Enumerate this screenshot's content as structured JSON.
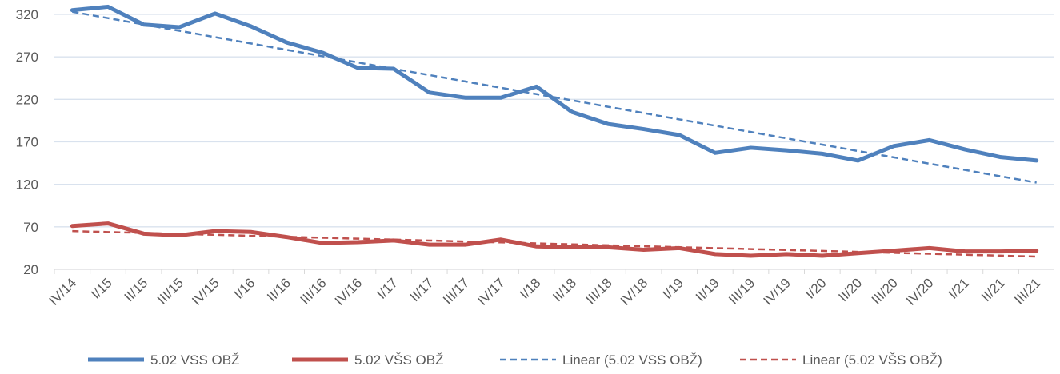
{
  "chart_data": {
    "type": "line",
    "categories": [
      "IV/14",
      "I/15",
      "II/15",
      "III/15",
      "IV/15",
      "I/16",
      "II/16",
      "III/16",
      "IV/16",
      "I/17",
      "II/17",
      "III/17",
      "IV/17",
      "I/18",
      "II/18",
      "III/18",
      "IV/18",
      "I/19",
      "II/19",
      "III/19",
      "IV/19",
      "I/20",
      "II/20",
      "III/20",
      "IV/20",
      "I/21",
      "II/21",
      "III/21"
    ],
    "series": [
      {
        "name": "5.02 VSS OBŽ",
        "color": "#4f81bd",
        "dashed": false,
        "values": [
          325,
          329,
          308,
          305,
          321,
          306,
          287,
          275,
          257,
          256,
          228,
          222,
          222,
          235,
          205,
          191,
          185,
          178,
          157,
          163,
          160,
          156,
          148,
          165,
          172,
          161,
          152,
          148
        ]
      },
      {
        "name": "5.02 VŠS OBŽ",
        "color": "#c0504d",
        "dashed": false,
        "values": [
          71,
          74,
          62,
          60,
          65,
          64,
          58,
          51,
          52,
          54,
          49,
          49,
          55,
          47,
          46,
          46,
          43,
          45,
          38,
          36,
          38,
          36,
          39,
          42,
          45,
          41,
          41,
          42
        ]
      },
      {
        "name": "Linear (5.02 VSS OBŽ)",
        "color": "#4f81bd",
        "dashed": true,
        "values": [
          323,
          315.6,
          308.1,
          300.7,
          293.2,
          285.8,
          278.3,
          270.9,
          263.4,
          256,
          248.6,
          241.1,
          233.7,
          226.2,
          218.8,
          211.3,
          203.9,
          196.4,
          189,
          181.6,
          174.1,
          166.7,
          159.2,
          151.8,
          144.3,
          136.9,
          129.4,
          122
        ]
      },
      {
        "name": "Linear (5.02 VŠS OBŽ)",
        "color": "#c0504d",
        "dashed": true,
        "values": [
          65,
          63.9,
          62.8,
          61.7,
          60.6,
          59.4,
          58.3,
          57.2,
          56.1,
          55,
          53.9,
          52.8,
          51.7,
          50.6,
          49.4,
          48.3,
          47.2,
          46.1,
          45,
          43.9,
          42.8,
          41.7,
          40.6,
          39.4,
          38.3,
          37.2,
          36.1,
          35
        ]
      }
    ],
    "ylim": [
      20,
      320
    ],
    "yticks": [
      20,
      70,
      120,
      170,
      220,
      270,
      320
    ],
    "grid": true,
    "legend": "bottom"
  }
}
